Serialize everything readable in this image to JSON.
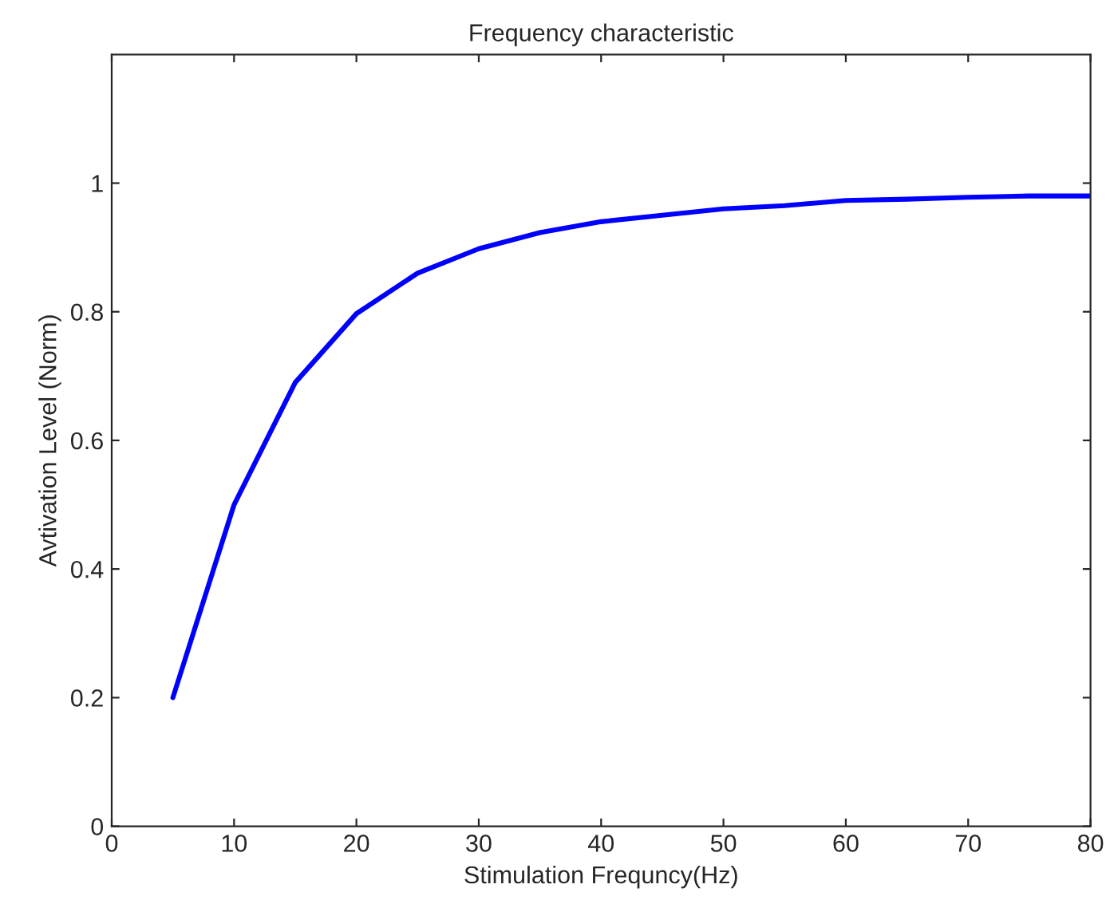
{
  "chart_data": {
    "type": "line",
    "title": "Frequency characteristic",
    "xlabel": "Stimulation Frequncy(Hz)",
    "ylabel": "Avtivation Level (Norm)",
    "x": [
      5,
      10,
      15,
      20,
      25,
      30,
      35,
      40,
      45,
      50,
      55,
      60,
      65,
      70,
      75,
      80
    ],
    "series": [
      {
        "color": "#0000ff",
        "values": [
          0.2,
          0.5,
          0.69,
          0.797,
          0.86,
          0.898,
          0.923,
          0.94,
          0.95,
          0.96,
          0.965,
          0.973,
          0.975,
          0.978,
          0.98,
          0.98
        ]
      }
    ],
    "xlim": [
      0,
      80
    ],
    "xticks": [
      0,
      10,
      20,
      30,
      40,
      50,
      60,
      70,
      80
    ],
    "ylim": [
      0,
      1.2
    ],
    "yticks": [
      0,
      0.2,
      0.4,
      0.6,
      0.8,
      1
    ],
    "grid": false,
    "legend": false
  }
}
